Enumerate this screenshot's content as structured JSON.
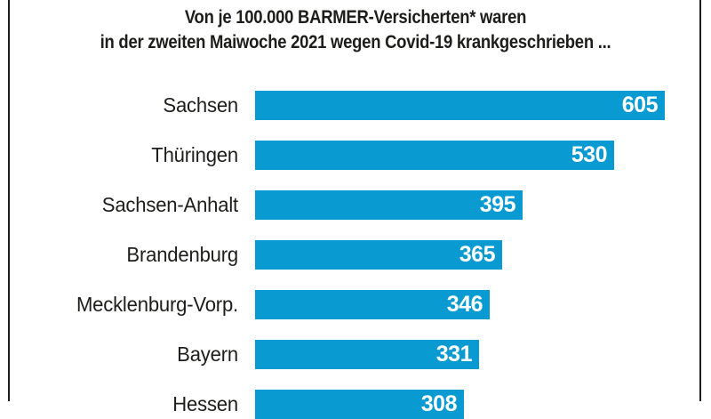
{
  "title": {
    "line1": "Von je 100.000 BARMER-Versicherten* waren",
    "line2": "in der zweiten Maiwoche 2021 wegen Covid-19 krankgeschrieben ..."
  },
  "colors": {
    "bar": "#0a9ad2",
    "text": "#1d1d1b",
    "value_text": "#ffffff",
    "frame": "#1d1d1b",
    "background": "#ffffff"
  },
  "chart_data": {
    "type": "bar",
    "orientation": "horizontal",
    "title": "Von je 100.000 BARMER-Versicherten* waren in der zweiten Maiwoche 2021 wegen Covid-19 krankgeschrieben ...",
    "categories": [
      "Sachsen",
      "Thüringen",
      "Sachsen-Anhalt",
      "Brandenburg",
      "Mecklenburg-Vorp.",
      "Bayern",
      "Hessen"
    ],
    "values": [
      605,
      530,
      395,
      365,
      346,
      331,
      308
    ],
    "xlim": [
      0,
      605
    ],
    "grid": false,
    "legend": "none",
    "value_label_position": "inside-end",
    "last_row_cropped": "Hessen"
  }
}
